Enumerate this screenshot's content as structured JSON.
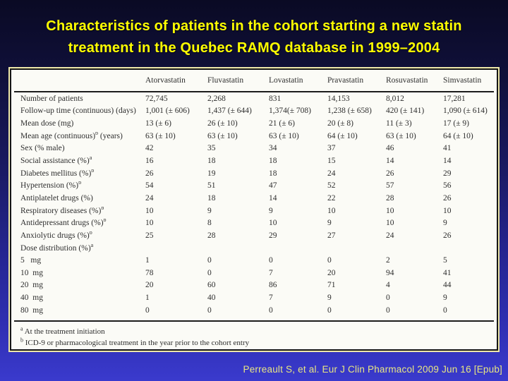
{
  "slide": {
    "title_line1": "Characteristics of patients in the cohort starting a new statin",
    "title_line2": "treatment in the Quebec RAMQ database in 1999–2004",
    "title_color": "#ffff00",
    "citation": "Perreault S, et al. Eur J Clin Pharmacol 2009 Jun 16 [Epub]",
    "citation_color": "#e8e682",
    "background_top_color": "#0a0a24",
    "background_bottom_color": "#3a3acd",
    "panel_border_color": "#161616",
    "panel_outline_color": "#eee8aa"
  },
  "table": {
    "columns": [
      "Atorvastatin",
      "Fluvastatin",
      "Lovastatin",
      "Pravastatin",
      "Rosuvastatin",
      "Simvastatin"
    ],
    "rows": [
      {
        "label": "Number of patients",
        "label_sup": "",
        "label_after": "",
        "values": [
          "72,745",
          "2,268",
          "831",
          "14,153",
          "8,012",
          "17,281"
        ]
      },
      {
        "label": "Follow-up time (continuous) (days)",
        "label_sup": "",
        "label_after": "",
        "values": [
          "1,001 (± 606)",
          "1,437 (± 644)",
          "1,374(± 708)",
          "1,238 (± 658)",
          "420 (± 141)",
          "1,090 (± 614)"
        ]
      },
      {
        "label": "Mean dose (mg)",
        "label_sup": "",
        "label_after": "",
        "values": [
          "13 (± 6)",
          "26 (± 10)",
          "21 (± 6)",
          "20 (± 8)",
          "11 (± 3)",
          "17 (± 9)"
        ]
      },
      {
        "label": "Mean age (continuous)",
        "label_sup": "b",
        "label_after": " (years)",
        "values": [
          "63 (± 10)",
          "63 (± 10)",
          "63 (± 10)",
          "64 (± 10)",
          "63 (± 10)",
          "64 (± 10)"
        ]
      },
      {
        "label": "Sex (% male)",
        "label_sup": "",
        "label_after": "",
        "values": [
          "42",
          "35",
          "34",
          "37",
          "46",
          "41"
        ]
      },
      {
        "label": "Social assistance (%)",
        "label_sup": "a",
        "label_after": "",
        "values": [
          "16",
          "18",
          "18",
          "15",
          "14",
          "14"
        ]
      },
      {
        "label": "Diabetes mellitus (%)",
        "label_sup": "b",
        "label_after": "",
        "values": [
          "26",
          "19",
          "18",
          "24",
          "26",
          "29"
        ]
      },
      {
        "label": "Hypertension (%)",
        "label_sup": "b",
        "label_after": "",
        "values": [
          "54",
          "51",
          "47",
          "52",
          "57",
          "56"
        ]
      },
      {
        "label": "Antiplatelet drugs (%)",
        "label_sup": "",
        "label_after": "",
        "values": [
          "24",
          "18",
          "14",
          "22",
          "28",
          "26"
        ]
      },
      {
        "label": "Respiratory diseases (%)",
        "label_sup": "b",
        "label_after": "",
        "values": [
          "10",
          "9",
          "9",
          "10",
          "10",
          "10"
        ]
      },
      {
        "label": "Antidepressant drugs (%)",
        "label_sup": "b",
        "label_after": "",
        "values": [
          "10",
          "8",
          "10",
          "9",
          "10",
          "9"
        ]
      },
      {
        "label": "Anxiolytic drugs (%)",
        "label_sup": "b",
        "label_after": "",
        "values": [
          "25",
          "28",
          "29",
          "27",
          "24",
          "26"
        ]
      },
      {
        "label": "Dose distribution (%)",
        "label_sup": "a",
        "label_after": "",
        "values": [
          "",
          "",
          "",
          "",
          "",
          ""
        ]
      },
      {
        "label": "5   mg",
        "label_sup": "",
        "label_after": "",
        "values": [
          "1",
          "0",
          "0",
          "0",
          "2",
          "5"
        ]
      },
      {
        "label": "10  mg",
        "label_sup": "",
        "label_after": "",
        "values": [
          "78",
          "0",
          "7",
          "20",
          "94",
          "41"
        ]
      },
      {
        "label": "20  mg",
        "label_sup": "",
        "label_after": "",
        "values": [
          "20",
          "60",
          "86",
          "71",
          "4",
          "44"
        ]
      },
      {
        "label": "40  mg",
        "label_sup": "",
        "label_after": "",
        "values": [
          "1",
          "40",
          "7",
          "9",
          "0",
          "9"
        ]
      },
      {
        "label": "80  mg",
        "label_sup": "",
        "label_after": "",
        "values": [
          "0",
          "0",
          "0",
          "0",
          "0",
          "0"
        ]
      }
    ],
    "footnotes": [
      {
        "sup": "a",
        "text": "At the treatment initiation"
      },
      {
        "sup": "b",
        "text": "ICD-9 or pharmacological treatment in the year prior to the cohort entry"
      }
    ]
  }
}
